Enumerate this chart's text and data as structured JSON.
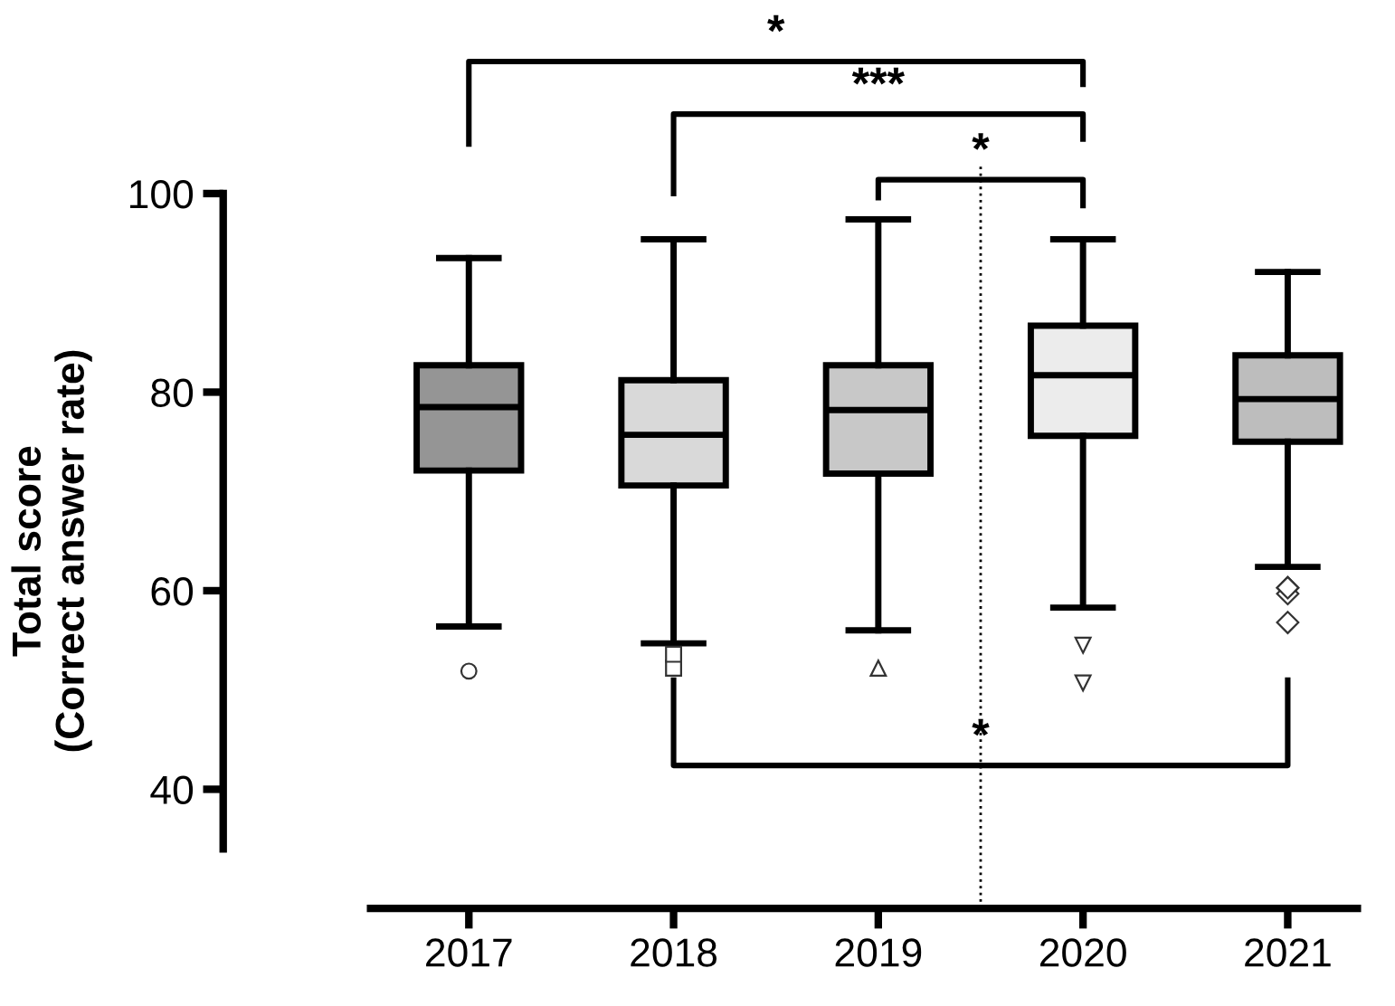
{
  "chart_data": {
    "type": "box",
    "ylabel": "Total score\n(Correct answer rate)",
    "categories": [
      "2017",
      "2018",
      "2019",
      "2020",
      "2021"
    ],
    "colors": [
      "#959595",
      "#d9d9d9",
      "#c8c8c8",
      "#ececec",
      "#bdbdbd"
    ],
    "marker": [
      "circle",
      "square",
      "triangle",
      "triangle_down",
      "diamond"
    ],
    "boxes": [
      {
        "low": 56.4,
        "q1": 72.1,
        "median": 78.5,
        "q3": 82.7,
        "high": 93.5,
        "outliers": [
          51.9
        ]
      },
      {
        "low": 54.7,
        "q1": 70.6,
        "median": 75.7,
        "q3": 81.2,
        "high": 95.4,
        "outliers": [
          52.2,
          53.6
        ]
      },
      {
        "low": 56.0,
        "q1": 71.8,
        "median": 78.2,
        "q3": 82.7,
        "high": 97.4,
        "outliers": [
          52.2
        ]
      },
      {
        "low": 58.3,
        "q1": 75.6,
        "median": 81.7,
        "q3": 86.7,
        "high": 95.4,
        "outliers": [
          54.5,
          50.7
        ]
      },
      {
        "low": 62.4,
        "q1": 75.0,
        "median": 79.3,
        "q3": 83.7,
        "high": 92.1,
        "outliers": [
          60.3,
          59.7,
          60.3,
          56.8
        ]
      }
    ],
    "ylim": [
      28,
      100
    ],
    "yticks": [
      40,
      60,
      80,
      100
    ],
    "annotations": [
      "*",
      "***",
      "*",
      "*"
    ],
    "grid": false
  }
}
